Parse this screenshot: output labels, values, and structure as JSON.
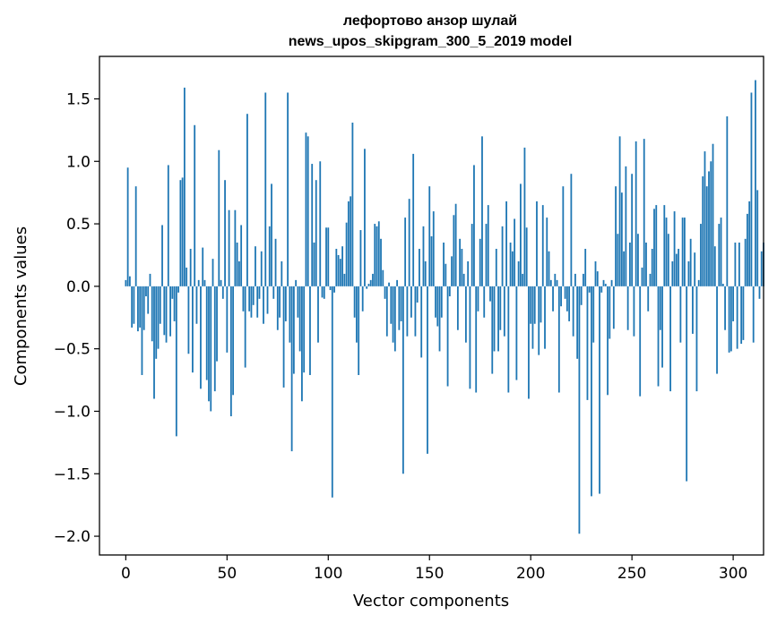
{
  "chart_data": {
    "type": "bar",
    "title": "лефортово анзор шулай",
    "subtitle": "news_upos_skipgram_300_5_2019 model",
    "xlabel": "Vector components",
    "ylabel": "Components values",
    "xlim": [
      -13,
      315
    ],
    "ylim": [
      -2.15,
      1.84
    ],
    "xticks": [
      0,
      50,
      100,
      150,
      200,
      250,
      300
    ],
    "yticks": [
      -2.0,
      -1.5,
      -1.0,
      -0.5,
      0.0,
      0.5,
      1.0,
      1.5
    ],
    "ytick_labels": [
      "−2.0",
      "−1.5",
      "−1.0",
      "−0.5",
      "0.0",
      "0.5",
      "1.0",
      "1.5"
    ],
    "xtick_labels": [
      "0",
      "50",
      "100",
      "150",
      "200",
      "250",
      "300"
    ],
    "grid": false,
    "color": "#1f77b4",
    "values": [
      0.05,
      0.95,
      0.08,
      -0.33,
      -0.3,
      0.8,
      -0.36,
      -0.33,
      -0.71,
      -0.35,
      -0.08,
      -0.22,
      0.1,
      -0.44,
      -0.9,
      -0.58,
      -0.5,
      -0.3,
      0.49,
      -0.39,
      -0.45,
      0.97,
      -0.4,
      -0.1,
      -0.28,
      -1.2,
      -0.05,
      0.85,
      0.87,
      1.59,
      0.15,
      -0.54,
      0.3,
      -0.69,
      1.29,
      -0.3,
      0.05,
      -0.82,
      0.31,
      0.05,
      -0.75,
      -0.92,
      -1.0,
      0.22,
      -0.84,
      -0.6,
      1.09,
      0.05,
      -0.1,
      0.85,
      -0.53,
      0.61,
      -1.04,
      -0.87,
      0.61,
      0.35,
      0.2,
      0.49,
      -0.2,
      -0.65,
      1.38,
      -0.2,
      -0.25,
      -0.15,
      0.32,
      -0.25,
      -0.1,
      0.28,
      -0.3,
      1.55,
      -0.22,
      0.48,
      0.82,
      -0.1,
      0.38,
      -0.35,
      -0.25,
      0.2,
      -0.81,
      -0.28,
      1.55,
      -0.45,
      -1.32,
      -0.7,
      0.05,
      -0.25,
      -0.52,
      -0.92,
      -0.69,
      1.23,
      1.2,
      -0.71,
      0.98,
      0.35,
      0.85,
      -0.45,
      1.0,
      -0.09,
      -0.1,
      0.47,
      0.47,
      -0.03,
      -1.69,
      -0.05,
      0.3,
      0.25,
      0.22,
      0.32,
      0.1,
      0.51,
      0.68,
      0.72,
      1.31,
      -0.25,
      -0.45,
      -0.71,
      0.45,
      -0.2,
      1.1,
      -0.02,
      0.02,
      0.05,
      0.1,
      0.5,
      0.48,
      0.52,
      0.38,
      0.13,
      -0.1,
      -0.4,
      0.03,
      -0.3,
      -0.45,
      -0.52,
      0.05,
      -0.35,
      -0.28,
      -1.5,
      0.55,
      -0.4,
      0.7,
      -0.25,
      1.06,
      -0.4,
      -0.13,
      0.3,
      -0.57,
      0.48,
      0.2,
      -1.34,
      0.8,
      0.4,
      0.6,
      -0.25,
      -0.32,
      -0.52,
      -0.25,
      0.35,
      0.18,
      -0.8,
      -0.08,
      0.24,
      0.57,
      0.66,
      -0.35,
      0.38,
      0.3,
      0.1,
      -0.45,
      0.2,
      -0.82,
      0.5,
      0.97,
      -0.85,
      -0.2,
      0.38,
      1.2,
      -0.25,
      0.5,
      0.65,
      -0.12,
      -0.7,
      -0.52,
      0.3,
      -0.52,
      -0.35,
      0.48,
      -0.4,
      0.68,
      -0.85,
      0.35,
      0.28,
      0.54,
      -0.75,
      0.2,
      0.82,
      0.1,
      1.11,
      0.47,
      -0.9,
      -0.3,
      -0.5,
      -0.3,
      0.68,
      -0.55,
      -0.29,
      0.65,
      -0.5,
      0.55,
      0.28,
      0.05,
      -0.2,
      0.1,
      0.05,
      -0.85,
      -0.16,
      0.8,
      -0.1,
      -0.2,
      -0.28,
      0.9,
      -0.4,
      0.1,
      -0.58,
      -1.98,
      -0.15,
      0.1,
      0.3,
      -0.91,
      -0.05,
      -1.68,
      -0.45,
      0.2,
      0.12,
      -1.66,
      -0.05,
      0.05,
      0.02,
      -0.87,
      -0.42,
      0.05,
      -0.34,
      0.8,
      0.42,
      1.2,
      0.75,
      0.28,
      0.96,
      -0.35,
      0.35,
      0.9,
      -0.4,
      1.16,
      0.42,
      -0.88,
      0.15,
      1.18,
      0.35,
      -0.2,
      0.1,
      0.3,
      0.62,
      0.65,
      -0.8,
      -0.35,
      -0.65,
      0.65,
      0.55,
      0.42,
      -0.84,
      0.2,
      0.6,
      0.26,
      0.3,
      -0.45,
      0.55,
      0.55,
      -1.56,
      0.2,
      0.38,
      -0.38,
      0.27,
      -0.84,
      0.05,
      0.5,
      0.88,
      1.08,
      0.8,
      0.92,
      1.0,
      1.14,
      0.32,
      -0.7,
      0.5,
      0.55,
      0.02,
      -0.35,
      1.36,
      -0.53,
      -0.52,
      -0.28,
      0.35,
      -0.5,
      0.35,
      -0.46,
      -0.43,
      0.38,
      0.58,
      0.68,
      1.55,
      -0.45,
      1.65,
      0.77,
      -0.1,
      0.28,
      0.35
    ]
  }
}
